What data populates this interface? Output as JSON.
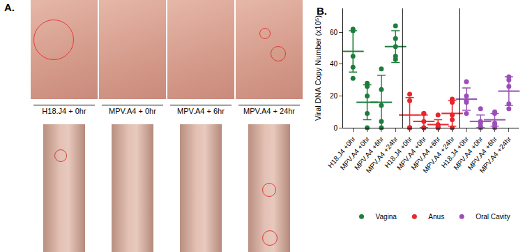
{
  "panel_a": {
    "label": "A.",
    "captions": [
      "H18.J4 + 0hr",
      "MPV.A4 + 0hr",
      "MPV.A4 + 6hr",
      "MPV.A4 + 24hr"
    ]
  },
  "chart_data": {
    "type": "scatter",
    "annotations": [
      "B."
    ],
    "y_label": "Viral DNA Copy Number (x10⁵)",
    "categories": [
      "H18.J4 +0hr",
      "MPV.A4 +0hr",
      "MPV.A4 +6hr",
      "MPV.A4 +24hr",
      "H18.J4 +0hr",
      "MPV.A4 +0hr",
      "MPV.A4 +6hr",
      "MPV.A4 +24hr",
      "H18.J4 +0hr",
      "MPV.A4 +0hr",
      "MPV.A4 +6hr",
      "MPV.A4 +24hr"
    ],
    "ylim": [
      0,
      75
    ],
    "yticks": [
      0,
      20,
      40,
      60
    ],
    "grid": false,
    "legend": "bottom",
    "marker": "circle",
    "series": [
      {
        "name": "Vagina",
        "color": "#1e7d3c",
        "values": [
          [
            62,
            61,
            45,
            38,
            31
          ],
          [
            28,
            26,
            20,
            9,
            0
          ],
          [
            37,
            24,
            14,
            4,
            0
          ],
          [
            64,
            56,
            51,
            45,
            43
          ],
          null,
          null,
          null,
          null,
          null,
          null,
          null,
          null
        ],
        "mean": [
          48,
          16,
          16,
          51,
          null,
          null,
          null,
          null,
          null,
          null,
          null,
          null
        ],
        "sd": [
          13,
          11,
          17,
          10,
          null,
          null,
          null,
          null,
          null,
          null,
          null,
          null
        ]
      },
      {
        "name": "Anus",
        "color": "#e8262b",
        "values": [
          null,
          null,
          null,
          null,
          [
            21,
            17,
            0,
            0,
            0
          ],
          [
            9,
            9,
            4,
            0,
            0
          ],
          [
            8,
            2,
            1,
            0,
            0
          ],
          [
            18,
            16,
            8,
            5,
            0
          ],
          null,
          null,
          null,
          null
        ],
        "mean": [
          null,
          null,
          null,
          null,
          8,
          4,
          2,
          9,
          null,
          null,
          null,
          null
        ],
        "sd": [
          null,
          null,
          null,
          null,
          11,
          4,
          3,
          8,
          null,
          null,
          null,
          null
        ]
      },
      {
        "name": "Oral Cavity",
        "color": "#9a4fb8",
        "values": [
          null,
          null,
          null,
          null,
          null,
          null,
          null,
          null,
          [
            29,
            20,
            17,
            16,
            9
          ],
          [
            12,
            4,
            3,
            1,
            0
          ],
          [
            10,
            9,
            3,
            2,
            0
          ],
          [
            32,
            30,
            26,
            15,
            12
          ]
        ],
        "mean": [
          null,
          null,
          null,
          null,
          null,
          null,
          null,
          null,
          18,
          4,
          5,
          23
        ],
        "sd": [
          null,
          null,
          null,
          null,
          null,
          null,
          null,
          null,
          7,
          4,
          4,
          9
        ]
      }
    ]
  }
}
